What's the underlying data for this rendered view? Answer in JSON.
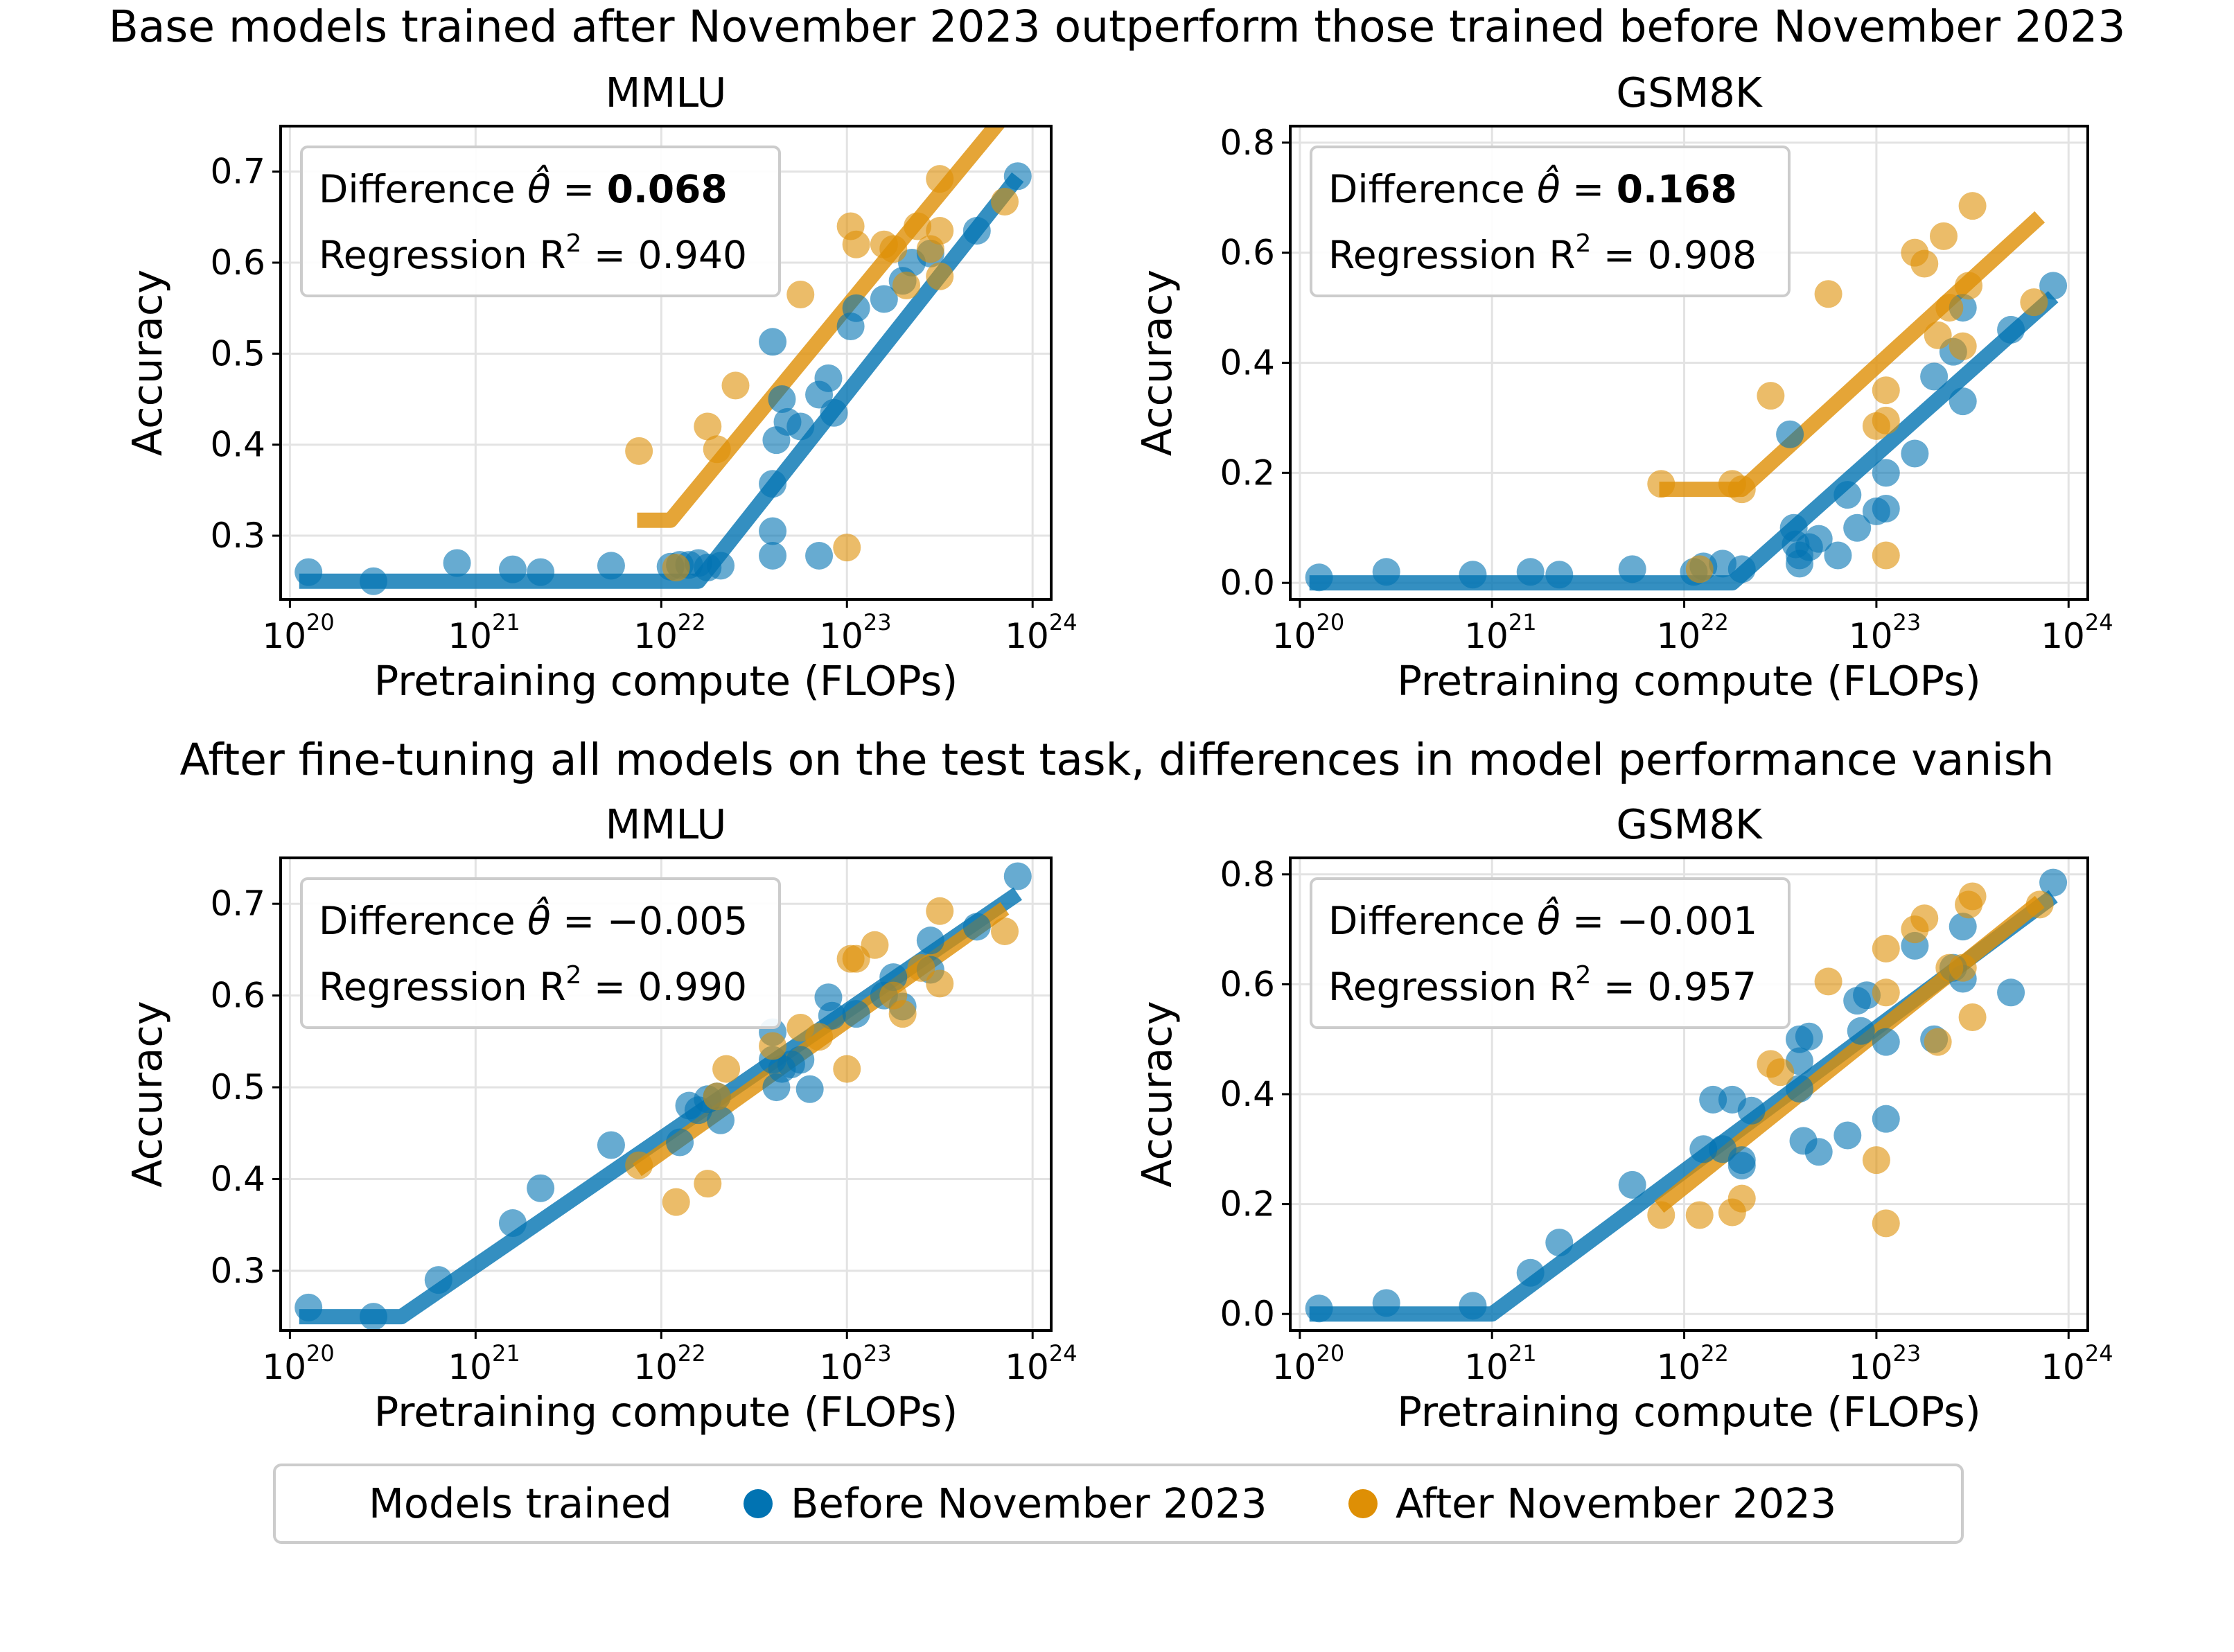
{
  "figure": {
    "title_top": "Base models trained after November 2023 outperform those trained before November 2023",
    "title_bottom": "After fine-tuning all models on the test task, differences in model performance vanish"
  },
  "legend": {
    "title": "Models trained",
    "before_label": "Before November 2023",
    "after_label": "After November 2023"
  },
  "colors": {
    "before": "#0173b2",
    "after": "#de8f05"
  },
  "annotation_labels": {
    "difference": "Difference",
    "regression": "Regression"
  },
  "chart_data": [
    {
      "type": "scatter",
      "title": "MMLU",
      "xlabel": "Pretraining compute (FLOPs)",
      "ylabel": "Accuracy",
      "xscale": "log",
      "xlim": [
        1e+20,
        1e+24
      ],
      "ylim": [
        0.23,
        0.75
      ],
      "yticks": [
        "0.3",
        "0.4",
        "0.5",
        "0.6",
        "0.7"
      ],
      "xticks": [
        "20",
        "21",
        "22",
        "23",
        "24"
      ],
      "difference": "0.068",
      "difference_bold": true,
      "r2": "0.940",
      "annotation_position": "top-left",
      "series": [
        {
          "name": "Before November 2023",
          "points": [
            [
              20.1,
              0.26
            ],
            [
              20.45,
              0.25
            ],
            [
              20.9,
              0.27
            ],
            [
              21.2,
              0.263
            ],
            [
              21.35,
              0.26
            ],
            [
              21.73,
              0.267
            ],
            [
              22.05,
              0.266
            ],
            [
              22.1,
              0.268
            ],
            [
              22.15,
              0.268
            ],
            [
              22.2,
              0.27
            ],
            [
              22.25,
              0.265
            ],
            [
              22.32,
              0.267
            ],
            [
              22.6,
              0.513
            ],
            [
              22.62,
              0.405
            ],
            [
              22.6,
              0.357
            ],
            [
              22.6,
              0.305
            ],
            [
              22.6,
              0.278
            ],
            [
              22.65,
              0.45
            ],
            [
              22.68,
              0.425
            ],
            [
              22.75,
              0.42
            ],
            [
              22.85,
              0.278
            ],
            [
              22.85,
              0.455
            ],
            [
              22.9,
              0.473
            ],
            [
              22.93,
              0.435
            ],
            [
              23.02,
              0.53
            ],
            [
              23.05,
              0.55
            ],
            [
              23.2,
              0.56
            ],
            [
              23.3,
              0.58
            ],
            [
              23.35,
              0.6
            ],
            [
              23.45,
              0.61
            ],
            [
              23.7,
              0.635
            ],
            [
              23.92,
              0.695
            ]
          ],
          "fit": [
            [
              20.05,
              0.25
            ],
            [
              22.2,
              0.25
            ],
            [
              23.92,
              0.694
            ]
          ]
        },
        {
          "name": "After November 2023",
          "points": [
            [
              21.88,
              0.393
            ],
            [
              22.08,
              0.265
            ],
            [
              22.25,
              0.42
            ],
            [
              22.3,
              0.395
            ],
            [
              22.4,
              0.465
            ],
            [
              22.75,
              0.565
            ],
            [
              23.02,
              0.64
            ],
            [
              23.05,
              0.62
            ],
            [
              23.0,
              0.287
            ],
            [
              23.2,
              0.62
            ],
            [
              23.25,
              0.615
            ],
            [
              23.32,
              0.575
            ],
            [
              23.38,
              0.64
            ],
            [
              23.45,
              0.615
            ],
            [
              23.5,
              0.692
            ],
            [
              23.5,
              0.635
            ],
            [
              23.5,
              0.585
            ],
            [
              23.85,
              0.667
            ]
          ],
          "fit": [
            [
              21.87,
              0.317
            ],
            [
              22.05,
              0.317
            ],
            [
              23.85,
              0.762
            ]
          ]
        }
      ]
    },
    {
      "type": "scatter",
      "title": "GSM8K",
      "xlabel": "Pretraining compute (FLOPs)",
      "ylabel": "Accuracy",
      "xscale": "log",
      "xlim": [
        1e+20,
        1e+24
      ],
      "ylim": [
        -0.03,
        0.83
      ],
      "yticks": [
        "0.0",
        "0.2",
        "0.4",
        "0.6",
        "0.8"
      ],
      "xticks": [
        "20",
        "21",
        "22",
        "23",
        "24"
      ],
      "difference": "0.168",
      "difference_bold": true,
      "r2": "0.908",
      "annotation_position": "top-left",
      "series": [
        {
          "name": "Before November 2023",
          "points": [
            [
              20.1,
              0.01
            ],
            [
              20.45,
              0.02
            ],
            [
              20.9,
              0.015
            ],
            [
              21.2,
              0.02
            ],
            [
              21.35,
              0.015
            ],
            [
              21.73,
              0.025
            ],
            [
              22.05,
              0.02
            ],
            [
              22.1,
              0.03
            ],
            [
              22.2,
              0.035
            ],
            [
              22.3,
              0.025
            ],
            [
              22.55,
              0.27
            ],
            [
              22.57,
              0.1
            ],
            [
              22.58,
              0.07
            ],
            [
              22.6,
              0.035
            ],
            [
              22.6,
              0.05
            ],
            [
              22.65,
              0.065
            ],
            [
              22.7,
              0.08
            ],
            [
              22.8,
              0.05
            ],
            [
              22.85,
              0.16
            ],
            [
              22.9,
              0.1
            ],
            [
              23.0,
              0.13
            ],
            [
              23.05,
              0.2
            ],
            [
              23.05,
              0.135
            ],
            [
              23.2,
              0.235
            ],
            [
              23.3,
              0.375
            ],
            [
              23.4,
              0.42
            ],
            [
              23.45,
              0.33
            ],
            [
              23.45,
              0.5
            ],
            [
              23.7,
              0.46
            ],
            [
              23.92,
              0.54
            ]
          ],
          "fit": [
            [
              20.05,
              0.0
            ],
            [
              22.25,
              0.0
            ],
            [
              23.92,
              0.52
            ]
          ]
        },
        {
          "name": "After November 2023",
          "points": [
            [
              21.88,
              0.18
            ],
            [
              22.08,
              0.025
            ],
            [
              22.25,
              0.18
            ],
            [
              22.3,
              0.17
            ],
            [
              22.45,
              0.34
            ],
            [
              22.75,
              0.525
            ],
            [
              23.0,
              0.285
            ],
            [
              23.05,
              0.35
            ],
            [
              23.05,
              0.295
            ],
            [
              23.05,
              0.05
            ],
            [
              23.2,
              0.6
            ],
            [
              23.25,
              0.58
            ],
            [
              23.32,
              0.45
            ],
            [
              23.35,
              0.63
            ],
            [
              23.38,
              0.5
            ],
            [
              23.45,
              0.43
            ],
            [
              23.48,
              0.54
            ],
            [
              23.5,
              0.685
            ],
            [
              23.82,
              0.51
            ]
          ],
          "fit": [
            [
              21.87,
              0.17
            ],
            [
              22.3,
              0.17
            ],
            [
              23.85,
              0.665
            ]
          ]
        }
      ]
    },
    {
      "type": "scatter",
      "title": "MMLU",
      "xlabel": "Pretraining compute (FLOPs)",
      "ylabel": "Accuracy",
      "xscale": "log",
      "xlim": [
        1e+20,
        1e+24
      ],
      "ylim": [
        0.235,
        0.75
      ],
      "yticks": [
        "0.3",
        "0.4",
        "0.5",
        "0.6",
        "0.7"
      ],
      "xticks": [
        "20",
        "21",
        "22",
        "23",
        "24"
      ],
      "difference": "−0.005",
      "difference_bold": false,
      "r2": "0.990",
      "annotation_position": "top-left",
      "series": [
        {
          "name": "Before November 2023",
          "points": [
            [
              20.1,
              0.26
            ],
            [
              20.45,
              0.25
            ],
            [
              20.8,
              0.29
            ],
            [
              21.2,
              0.352
            ],
            [
              21.35,
              0.39
            ],
            [
              21.73,
              0.437
            ],
            [
              22.1,
              0.44
            ],
            [
              22.15,
              0.48
            ],
            [
              22.2,
              0.475
            ],
            [
              22.25,
              0.487
            ],
            [
              22.3,
              0.49
            ],
            [
              22.32,
              0.464
            ],
            [
              22.6,
              0.56
            ],
            [
              22.6,
              0.53
            ],
            [
              22.62,
              0.5
            ],
            [
              22.65,
              0.52
            ],
            [
              22.7,
              0.525
            ],
            [
              22.75,
              0.53
            ],
            [
              22.8,
              0.498
            ],
            [
              22.9,
              0.598
            ],
            [
              22.92,
              0.578
            ],
            [
              23.05,
              0.58
            ],
            [
              23.2,
              0.6
            ],
            [
              23.25,
              0.62
            ],
            [
              23.3,
              0.588
            ],
            [
              23.45,
              0.66
            ],
            [
              23.45,
              0.628
            ],
            [
              23.7,
              0.675
            ],
            [
              23.92,
              0.73
            ]
          ],
          "fit": [
            [
              20.05,
              0.25
            ],
            [
              20.6,
              0.25
            ],
            [
              23.92,
              0.711
            ]
          ]
        },
        {
          "name": "After November 2023",
          "points": [
            [
              21.88,
              0.415
            ],
            [
              22.08,
              0.375
            ],
            [
              22.25,
              0.395
            ],
            [
              22.3,
              0.49
            ],
            [
              22.35,
              0.52
            ],
            [
              22.6,
              0.545
            ],
            [
              22.75,
              0.565
            ],
            [
              22.85,
              0.555
            ],
            [
              23.0,
              0.52
            ],
            [
              23.02,
              0.64
            ],
            [
              23.05,
              0.64
            ],
            [
              23.15,
              0.655
            ],
            [
              23.25,
              0.6
            ],
            [
              23.3,
              0.58
            ],
            [
              23.4,
              0.63
            ],
            [
              23.5,
              0.692
            ],
            [
              23.5,
              0.613
            ],
            [
              23.85,
              0.67
            ]
          ],
          "fit": [
            [
              21.87,
              0.41
            ],
            [
              23.85,
              0.695
            ]
          ]
        }
      ]
    },
    {
      "type": "scatter",
      "title": "GSM8K",
      "xlabel": "Pretraining compute (FLOPs)",
      "ylabel": "Accuracy",
      "xscale": "log",
      "xlim": [
        1e+20,
        1e+24
      ],
      "ylim": [
        -0.03,
        0.83
      ],
      "yticks": [
        "0.0",
        "0.2",
        "0.4",
        "0.6",
        "0.8"
      ],
      "xticks": [
        "20",
        "21",
        "22",
        "23",
        "24"
      ],
      "difference": "−0.001",
      "difference_bold": false,
      "r2": "0.957",
      "annotation_position": "top-left",
      "series": [
        {
          "name": "Before November 2023",
          "points": [
            [
              20.1,
              0.01
            ],
            [
              20.45,
              0.02
            ],
            [
              20.9,
              0.015
            ],
            [
              21.2,
              0.075
            ],
            [
              21.35,
              0.13
            ],
            [
              21.73,
              0.235
            ],
            [
              22.1,
              0.3
            ],
            [
              22.15,
              0.39
            ],
            [
              22.2,
              0.3
            ],
            [
              22.25,
              0.39
            ],
            [
              22.3,
              0.28
            ],
            [
              22.3,
              0.27
            ],
            [
              22.35,
              0.37
            ],
            [
              22.6,
              0.5
            ],
            [
              22.6,
              0.46
            ],
            [
              22.6,
              0.41
            ],
            [
              22.62,
              0.315
            ],
            [
              22.65,
              0.505
            ],
            [
              22.7,
              0.295
            ],
            [
              22.85,
              0.325
            ],
            [
              22.9,
              0.57
            ],
            [
              22.92,
              0.515
            ],
            [
              22.95,
              0.58
            ],
            [
              23.05,
              0.495
            ],
            [
              23.05,
              0.355
            ],
            [
              23.2,
              0.67
            ],
            [
              23.3,
              0.5
            ],
            [
              23.4,
              0.63
            ],
            [
              23.45,
              0.705
            ],
            [
              23.45,
              0.61
            ],
            [
              23.7,
              0.585
            ],
            [
              23.92,
              0.785
            ]
          ],
          "fit": [
            [
              20.05,
              0.0
            ],
            [
              21.0,
              0.0
            ],
            [
              23.92,
              0.76
            ]
          ]
        },
        {
          "name": "After November 2023",
          "points": [
            [
              21.88,
              0.18
            ],
            [
              22.08,
              0.18
            ],
            [
              22.25,
              0.185
            ],
            [
              22.3,
              0.21
            ],
            [
              22.45,
              0.455
            ],
            [
              22.5,
              0.44
            ],
            [
              22.75,
              0.605
            ],
            [
              23.0,
              0.28
            ],
            [
              23.05,
              0.665
            ],
            [
              23.05,
              0.585
            ],
            [
              23.05,
              0.165
            ],
            [
              23.2,
              0.7
            ],
            [
              23.25,
              0.72
            ],
            [
              23.32,
              0.495
            ],
            [
              23.38,
              0.63
            ],
            [
              23.45,
              0.63
            ],
            [
              23.48,
              0.745
            ],
            [
              23.5,
              0.76
            ],
            [
              23.5,
              0.54
            ],
            [
              23.85,
              0.745
            ]
          ],
          "fit": [
            [
              21.87,
              0.195
            ],
            [
              23.85,
              0.75
            ]
          ]
        }
      ]
    }
  ]
}
